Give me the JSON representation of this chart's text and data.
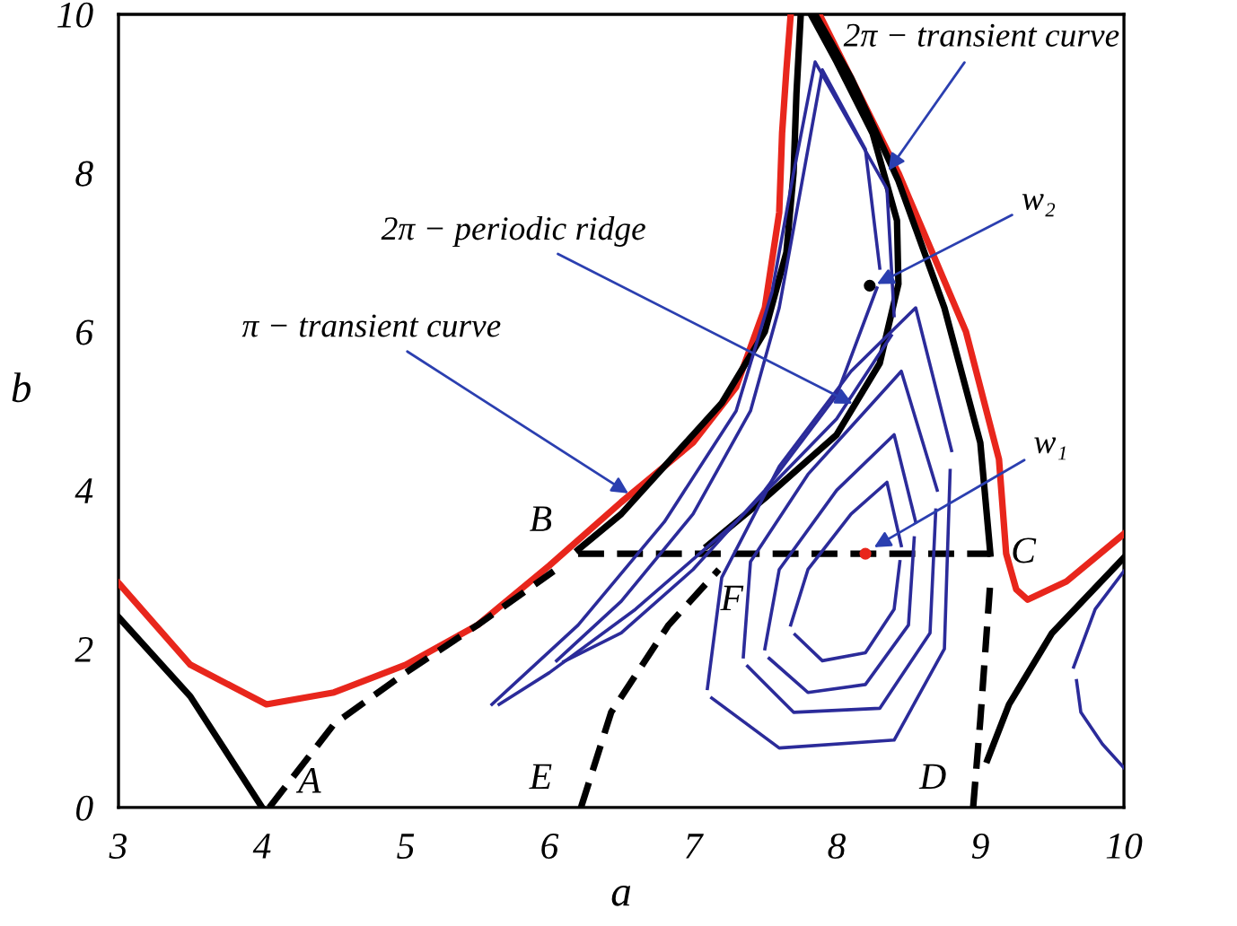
{
  "chart_data": {
    "type": "line",
    "xlabel": "a",
    "ylabel": "b",
    "xlim": [
      3,
      10
    ],
    "ylim": [
      0,
      10
    ],
    "xticks": [
      3,
      4,
      5,
      6,
      7,
      8,
      9,
      10
    ],
    "yticks": [
      0,
      2,
      4,
      6,
      8,
      10
    ],
    "grid": false,
    "legend": false,
    "series": [
      {
        "color": "#e8261c",
        "x": [
          3,
          3.5,
          4.03,
          4.5,
          5,
          5.5,
          6,
          6.5,
          7,
          7.3,
          7.5,
          7.6,
          7.62,
          7.65,
          7.68
        ],
        "values": [
          2.83,
          1.8,
          1.3,
          1.45,
          1.8,
          2.3,
          3.05,
          3.85,
          4.6,
          5.3,
          6.3,
          7.5,
          8.5,
          9.3,
          10
        ]
      },
      {
        "color": "#e8261c",
        "x": [
          7.88,
          8.1,
          8.43,
          8.9,
          9.13,
          9.18,
          9.25,
          9.33,
          9.6,
          10
        ],
        "values": [
          10,
          9.2,
          8.0,
          6.0,
          4.39,
          3.2,
          2.75,
          2.62,
          2.85,
          3.45
        ]
      },
      {
        "color": "#000000",
        "x": [
          6.2,
          6.5,
          6.8,
          7.2,
          7.5,
          7.65,
          7.7,
          7.72,
          7.75
        ],
        "values": [
          3.25,
          3.7,
          4.3,
          5.1,
          6.0,
          7.0,
          8.0,
          9.0,
          10
        ]
      },
      {
        "color": "#000000",
        "x": [
          7.1,
          7.5,
          8.0,
          8.3,
          8.43,
          8.42,
          8.25,
          8.0,
          7.82
        ],
        "values": [
          3.3,
          3.9,
          4.7,
          5.6,
          6.6,
          7.4,
          8.5,
          9.4,
          10
        ]
      },
      {
        "color": "#000000",
        "x": [
          7.85,
          8.1,
          8.43,
          8.75,
          9.0,
          9.07
        ],
        "values": [
          10,
          9.2,
          7.9,
          6.3,
          4.6,
          3.2
        ]
      },
      {
        "color": "#000000",
        "x": [
          3,
          3.5,
          4
        ],
        "values": [
          2.4,
          1.4,
          0
        ]
      },
      {
        "color": "#000000",
        "x": [
          9.05,
          9.2,
          9.5,
          10
        ],
        "values": [
          0.6,
          1.3,
          2.2,
          3.15
        ]
      },
      {
        "color": "#000000",
        "line_style": "dashed",
        "x": [
          4.05,
          4.5,
          5,
          5.5,
          6.03
        ],
        "values": [
          0,
          1.05,
          1.7,
          2.3,
          2.98
        ]
      },
      {
        "color": "#000000",
        "line_style": "dashed",
        "x": [
          6.22,
          6.43,
          6.83,
          7.18
        ],
        "values": [
          0,
          1.2,
          2.3,
          3.0
        ]
      },
      {
        "color": "#000000",
        "line_style": "dashed",
        "x": [
          8.95,
          9.0,
          9.07
        ],
        "values": [
          0,
          1.1,
          2.85
        ]
      },
      {
        "color": "#000000",
        "line_style": "dashed",
        "x": [
          6.2,
          9.07
        ],
        "values": [
          3.2,
          3.2
        ]
      },
      {
        "color": "#2b2b9a",
        "x": [
          7.68,
          7.8,
          8.1,
          8.35,
          8.45
        ],
        "values": [
          2.3,
          3.0,
          3.7,
          4.1,
          3.3
        ]
      },
      {
        "color": "#2b2b9a",
        "x": [
          7.71,
          7.9,
          8.2,
          8.4,
          8.44
        ],
        "values": [
          2.18,
          1.85,
          1.95,
          2.5,
          3.1
        ]
      },
      {
        "color": "#2b2b9a",
        "x": [
          7.5,
          7.6,
          8.0,
          8.4,
          8.55
        ],
        "values": [
          2.0,
          3.0,
          4.0,
          4.7,
          3.6
        ]
      },
      {
        "color": "#2b2b9a",
        "x": [
          7.53,
          7.8,
          8.2,
          8.5,
          8.54
        ],
        "values": [
          1.88,
          1.45,
          1.55,
          2.3,
          3.4
        ]
      },
      {
        "color": "#2b2b9a",
        "x": [
          7.35,
          7.4,
          7.8,
          8.2,
          8.45,
          8.7
        ],
        "values": [
          1.9,
          3.1,
          4.2,
          5.0,
          5.5,
          4.0
        ]
      },
      {
        "color": "#2b2b9a",
        "x": [
          7.38,
          7.7,
          8.3,
          8.65,
          8.69
        ],
        "values": [
          1.78,
          1.2,
          1.25,
          2.2,
          3.75
        ]
      },
      {
        "color": "#2b2b9a",
        "x": [
          7.1,
          7.2,
          7.6,
          8.1,
          8.55,
          8.8
        ],
        "values": [
          1.5,
          2.9,
          4.3,
          5.5,
          6.3,
          4.5
        ]
      },
      {
        "color": "#2b2b9a",
        "x": [
          7.13,
          7.6,
          8.4,
          8.75,
          8.79
        ],
        "values": [
          1.38,
          0.75,
          0.85,
          2.0,
          4.25
        ]
      },
      {
        "color": "#2b2b9a",
        "x": [
          6.05,
          6.5,
          7.0,
          7.4,
          7.6,
          7.75,
          7.9,
          8.2,
          8.3
        ],
        "values": [
          1.85,
          2.6,
          3.7,
          5.0,
          6.3,
          7.8,
          9.3,
          8.3,
          6.8
        ]
      },
      {
        "color": "#2b2b9a",
        "x": [
          6.1,
          6.5,
          7.0,
          7.5,
          8.0,
          8.28
        ],
        "values": [
          1.84,
          2.2,
          3.0,
          4.0,
          5.2,
          6.55
        ]
      },
      {
        "color": "#2b2b9a",
        "x": [
          5.6,
          6.2,
          6.8,
          7.3,
          7.55,
          7.7,
          7.85,
          8.35,
          8.4
        ],
        "values": [
          1.3,
          2.3,
          3.6,
          5.0,
          6.5,
          8.0,
          9.4,
          7.8,
          6.2
        ]
      },
      {
        "color": "#2b2b9a",
        "x": [
          5.65,
          6.0,
          6.6,
          7.3,
          8.0,
          8.38
        ],
        "values": [
          1.3,
          1.7,
          2.5,
          3.6,
          4.9,
          5.95
        ]
      },
      {
        "color": "#2b2b9a",
        "x": [
          9.65,
          9.8,
          10
        ],
        "values": [
          1.77,
          2.5,
          2.98
        ]
      },
      {
        "color": "#2b2b9a",
        "x": [
          9.67,
          9.7,
          9.85,
          10
        ],
        "values": [
          1.6,
          1.2,
          0.8,
          0.5
        ]
      },
      {
        "type": "scatter",
        "marker": "circle",
        "color": "#e8261c",
        "x": [
          8.2
        ],
        "values": [
          3.2
        ]
      },
      {
        "type": "scatter",
        "marker": "circle",
        "color": "#000000",
        "x": [
          8.23
        ],
        "values": [
          6.58
        ]
      }
    ],
    "annotations": [
      "A",
      "B",
      "C",
      "D",
      "E",
      "F",
      {
        "text": "π − transient curve",
        "x": 6.55,
        "y": 3.96
      },
      {
        "text": "2π − periodic ridge",
        "x": 8.11,
        "y": 5.09
      },
      {
        "text": "2π − transient curve",
        "x": 8.36,
        "y": 8.03
      },
      {
        "text": "w₂",
        "x": 8.28,
        "y": 6.6
      },
      {
        "text": "w₁",
        "x": 8.26,
        "y": 3.28
      }
    ]
  }
}
